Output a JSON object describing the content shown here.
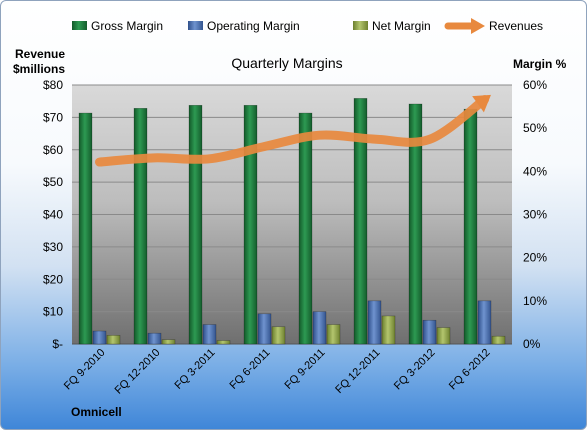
{
  "chart_data": {
    "type": "bar",
    "title": "Quarterly Margins",
    "company": "Omnicell",
    "left_axis_title": [
      "Revenue",
      "$millions"
    ],
    "right_axis_title": "Margin %",
    "categories": [
      "FQ 9-2010",
      "FQ 12-2010",
      "FQ 3-2011",
      "FQ 6-2011",
      "FQ 9-2011",
      "FQ 12-2011",
      "FQ 3-2012",
      "FQ 6-2012"
    ],
    "left_ticks": [
      "$-",
      "$10",
      "$20",
      "$30",
      "$40",
      "$50",
      "$60",
      "$70",
      "$80"
    ],
    "right_ticks": [
      "0%",
      "10%",
      "20%",
      "30%",
      "40%",
      "50%",
      "60%"
    ],
    "left_ylim": [
      0,
      80
    ],
    "right_ylim": [
      0,
      60
    ],
    "legend_position": "top",
    "series": [
      {
        "name": "Gross Margin",
        "type": "bar",
        "axis": "right",
        "color": "#1f7a3d",
        "values": [
          53.5,
          54.6,
          55.3,
          55.3,
          53.5,
          56.9,
          55.6,
          54.4
        ]
      },
      {
        "name": "Operating Margin",
        "type": "bar",
        "axis": "right",
        "color": "#4a6fb0",
        "values": [
          3.0,
          2.5,
          4.5,
          7.0,
          7.5,
          10.0,
          5.5,
          10.0
        ]
      },
      {
        "name": "Net Margin",
        "type": "bar",
        "axis": "right",
        "color": "#93a84c",
        "values": [
          2.0,
          1.0,
          0.8,
          4.0,
          4.5,
          6.5,
          3.8,
          1.8
        ]
      },
      {
        "name": "Revenues",
        "type": "line",
        "axis": "left",
        "color": "#e8893e",
        "values": [
          56.2,
          57.5,
          57.2,
          61.0,
          64.5,
          63.3,
          63.2,
          75.5
        ]
      }
    ]
  }
}
